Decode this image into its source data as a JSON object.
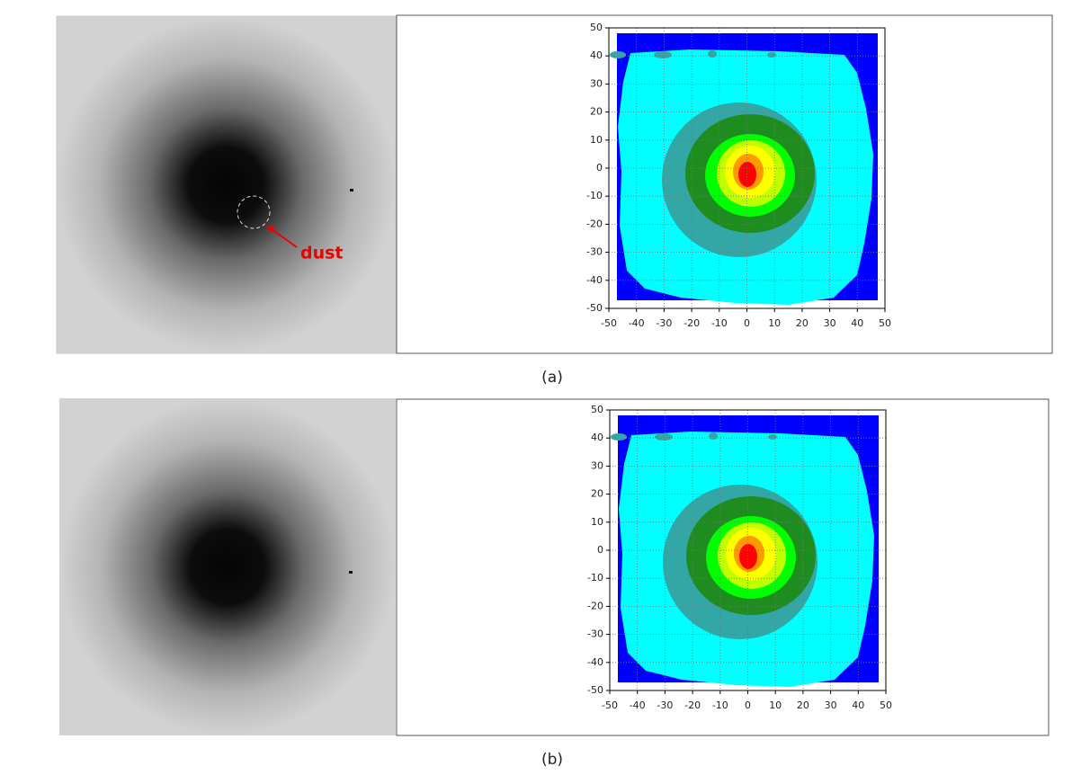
{
  "panels": [
    {
      "caption": "(a)",
      "annotation": "dust",
      "contour": {
        "xlim": [
          -50,
          50
        ],
        "ylim": [
          -50,
          50
        ],
        "xticks": [
          -50,
          -40,
          -30,
          -20,
          -10,
          0,
          10,
          20,
          30,
          40,
          50
        ],
        "yticks": [
          -50,
          -40,
          -30,
          -20,
          -10,
          0,
          10,
          20,
          30,
          40,
          50
        ],
        "grid": true
      }
    },
    {
      "caption": "(b)",
      "contour": {
        "xlim": [
          -50,
          50
        ],
        "ylim": [
          -50,
          50
        ],
        "xticks": [
          -50,
          -40,
          -30,
          -20,
          -10,
          0,
          10,
          20,
          30,
          40,
          50
        ],
        "yticks": [
          -50,
          -40,
          -30,
          -20,
          -10,
          0,
          10,
          20,
          30,
          40,
          50
        ],
        "grid": true
      }
    }
  ]
}
